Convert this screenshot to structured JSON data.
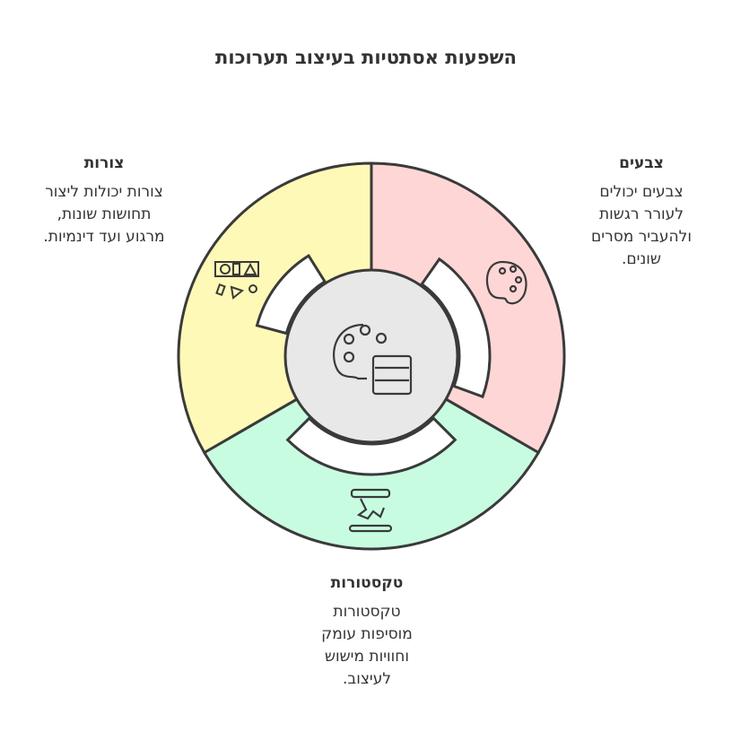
{
  "title": "השפעות אסתטיות בעיצוב תערוכות",
  "segments": {
    "colors": {
      "title": "צבעים",
      "lines": [
        "צבעים יכולים",
        "לעורר רגשות",
        "ולהעביר מסרים",
        "שונים."
      ],
      "fill": "#ffd6d6",
      "icon": "palette-icon"
    },
    "shapes": {
      "title": "צורות",
      "lines": [
        "צורות יכולות ליצור",
        "תחושות שונות,",
        "מרגוע ועד דינמיות."
      ],
      "fill": "#fff9b8",
      "icon": "shapes-icon"
    },
    "textures": {
      "title": "טקסטורות",
      "lines": [
        "טקסטורות",
        "מוסיפות עומק",
        "וחוויות מישוש",
        "לעיצוב."
      ],
      "fill": "#c8fce0",
      "icon": "texture-icon"
    }
  },
  "center": {
    "fill": "#e8e8e8",
    "icon": "palette-and-swatch-icon"
  },
  "stroke": "#3a3a3a"
}
